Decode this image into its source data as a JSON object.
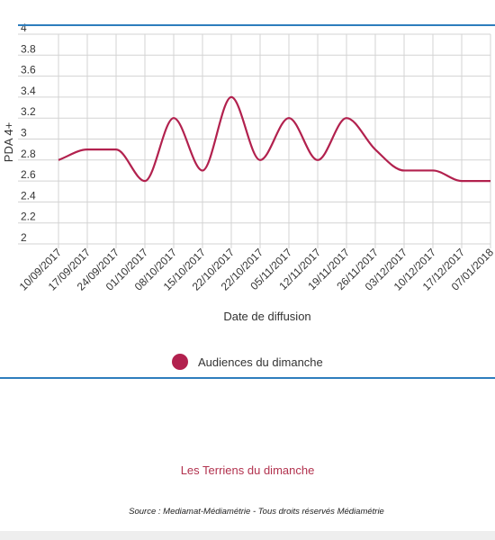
{
  "chart_data": {
    "type": "line",
    "x": [
      "10/09/2017",
      "17/09/2017",
      "24/09/2017",
      "01/10/2017",
      "08/10/2017",
      "15/10/2017",
      "22/10/2017",
      "22/10/2017",
      "05/11/2017",
      "12/11/2017",
      "19/11/2017",
      "26/11/2017",
      "03/12/2017",
      "10/12/2017",
      "17/12/2017",
      "07/01/2018"
    ],
    "series": [
      {
        "name": "Audiences du dimanche",
        "values": [
          2.8,
          2.9,
          2.9,
          2.6,
          3.2,
          2.7,
          3.4,
          2.8,
          3.2,
          2.8,
          3.2,
          2.9,
          2.7,
          2.7,
          2.6,
          2.6
        ],
        "color": "#b2214e"
      }
    ],
    "xlabel": "Date de diffusion",
    "ylabel": "PDA 4+",
    "ylim": [
      2,
      4
    ],
    "yticks": [
      "2",
      "2.2",
      "2.4",
      "2.6",
      "2.8",
      "3",
      "3.2",
      "3.4",
      "3.6",
      "3.8",
      "4"
    ],
    "grid": true,
    "legend": "bottom",
    "accent_line_color": "#2d7dbd"
  },
  "caption": "Les Terriens du dimanche",
  "source": "Source : Mediamat-Médiamétrie - Tous droits réservés Médiamétrie"
}
